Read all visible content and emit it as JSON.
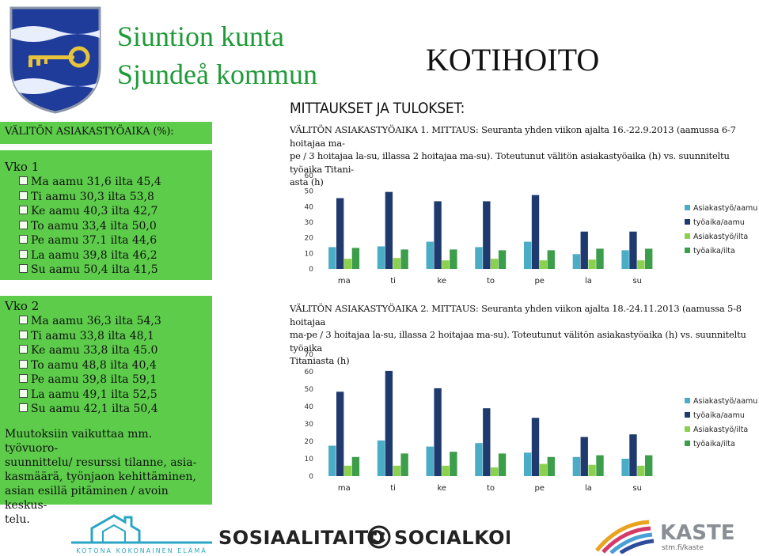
{
  "header": {
    "municipality_fi": "Siuntion kunta",
    "municipality_sv": "Sjundeå kommun",
    "title": "KOTIHOITO",
    "subheading": "MITTAUKSET JA TULOKSET:"
  },
  "left_panel": {
    "heading": "VÄLITÖN ASIAKASTYÖAIKA (%):",
    "week1": {
      "title": "Vko 1",
      "items": [
        "Ma aamu 31,6 ilta 45,4",
        "Ti aamu 30,3 ilta 53,8",
        "Ke aamu 40,3 ilta 42,7",
        "To aamu 33,4 ilta 50,0",
        "Pe aamu 37.1 ilta 44,6",
        "La aamu 39,8 ilta 46,2",
        "Su aamu 50,4 ilta 41,5"
      ]
    },
    "week2": {
      "title": "Vko 2",
      "items": [
        "Ma aamu 36,3 ilta 54,3",
        "Ti aamu 33,8 ilta 48,1",
        "Ke aamu 33,8 ilta 45.0",
        "To  aamu 48,8 ilta 40,4",
        "Pe aamu 39,8 ilta 59,1",
        "La aamu 49,1 ilta 52,5",
        "Su aamu 42,1 ilta 50,4"
      ]
    },
    "note": "Muutoksiin vaikuttaa mm. työvuorosuunnittelu/ resurssi tilanne, asiakasmäärä, työnjaon kehittäminen, asian esillä pitäminen / avoin keskustelu.",
    "note_lines": [
      "Muutoksiin vaikuttaa mm. työvuoro-",
      "suunnittelu/ resurssi tilanne, asia-",
      "kasmäärä, työnjaon kehittäminen,",
      "asian esillä pitäminen / avoin keskus-",
      "telu."
    ]
  },
  "chart1_caption": {
    "label": "VÄLITÖN ASIAKASTYÖAIKA 1. MITTAUS",
    "lines": [
      "VÄLITÖN ASIAKASTYÖAIKA 1. MITTAUS: Seuranta yhden viikon ajalta 16.-22.9.2013 (aamussa 6-7 hoitajaa ma-",
      "pe / 3 hoitajaa la-su, illassa 2 hoitajaa ma-su). Toteutunut välitön asiakastyöaika (h) vs. suunniteltu työaika Titani-",
      "asta (h)"
    ]
  },
  "chart2_caption": {
    "lines": [
      "VÄLITÖN ASIAKASTYÖAIKA 2. MITTAUS: Seuranta yhden viikon ajalta 18.-24.11.2013 (aamussa 5-8 hoitajaa",
      "ma-pe / 3 hoitajaa la-su, illassa 2 hoitajaa ma-su). Toteutunut välitön asiakastyöaika (h) vs. suunniteltu työaika",
      "Titaniasta (h)"
    ]
  },
  "chart_data": [
    {
      "type": "bar",
      "categories": [
        "ma",
        "ti",
        "ke",
        "to",
        "pe",
        "la",
        "su"
      ],
      "ylim": [
        0,
        60
      ],
      "yticks": [
        "0",
        "10",
        "20",
        "30",
        "40",
        "50",
        "60"
      ],
      "legend_position": "right",
      "series": [
        {
          "name": "Asiakastyö/aamu",
          "color": "#4bacc6",
          "values": [
            14,
            14.5,
            17.5,
            14,
            17.5,
            9.5,
            12
          ]
        },
        {
          "name": "työaika/aamu",
          "color": "#1f3a6e",
          "values": [
            45.5,
            49.5,
            43.5,
            43.5,
            47.5,
            24,
            24
          ]
        },
        {
          "name": "Asiakastyö/ilta",
          "color": "#8bd14f",
          "values": [
            6.5,
            7,
            5.5,
            6.5,
            5.5,
            6,
            5.5
          ]
        },
        {
          "name": "työaika/ilta",
          "color": "#3c9d4a",
          "values": [
            13.5,
            12.5,
            12.5,
            12,
            12,
            13,
            13
          ]
        }
      ]
    },
    {
      "type": "bar",
      "categories": [
        "ma",
        "ti",
        "ke",
        "to",
        "pe",
        "la",
        "su"
      ],
      "ylim": [
        0,
        70
      ],
      "yticks": [
        "0",
        "10",
        "20",
        "30",
        "40",
        "50",
        "60",
        "70"
      ],
      "legend_position": "right",
      "series": [
        {
          "name": "Asiakastyö/aamu",
          "color": "#4bacc6",
          "values": [
            17.5,
            20.5,
            17,
            19,
            13.5,
            11,
            10
          ]
        },
        {
          "name": "työaika/aamu",
          "color": "#1f3a6e",
          "values": [
            48.5,
            60.5,
            50.5,
            39,
            33.5,
            22.5,
            24
          ]
        },
        {
          "name": "Asiakastyö/ilta",
          "color": "#8bd14f",
          "values": [
            6,
            6,
            6,
            5,
            7,
            6.5,
            6
          ]
        },
        {
          "name": "työaika/ilta",
          "color": "#3c9d4a",
          "values": [
            11,
            13,
            14,
            13,
            11,
            12,
            12
          ]
        }
      ]
    }
  ],
  "footer": {
    "kotona_text": "KOTONA KOKONAINEN ELÄMÄ",
    "sosi_left": "SOSIAALITAITO",
    "sosi_right": "SOCIALKOMPETENS",
    "kaste_name": "KASTE",
    "kaste_url": "stm.fi/kaste"
  },
  "colors": {
    "panel_green": "#5ccc4a",
    "title_green": "#1f9a38",
    "crest_blue": "#1f3c9b"
  }
}
